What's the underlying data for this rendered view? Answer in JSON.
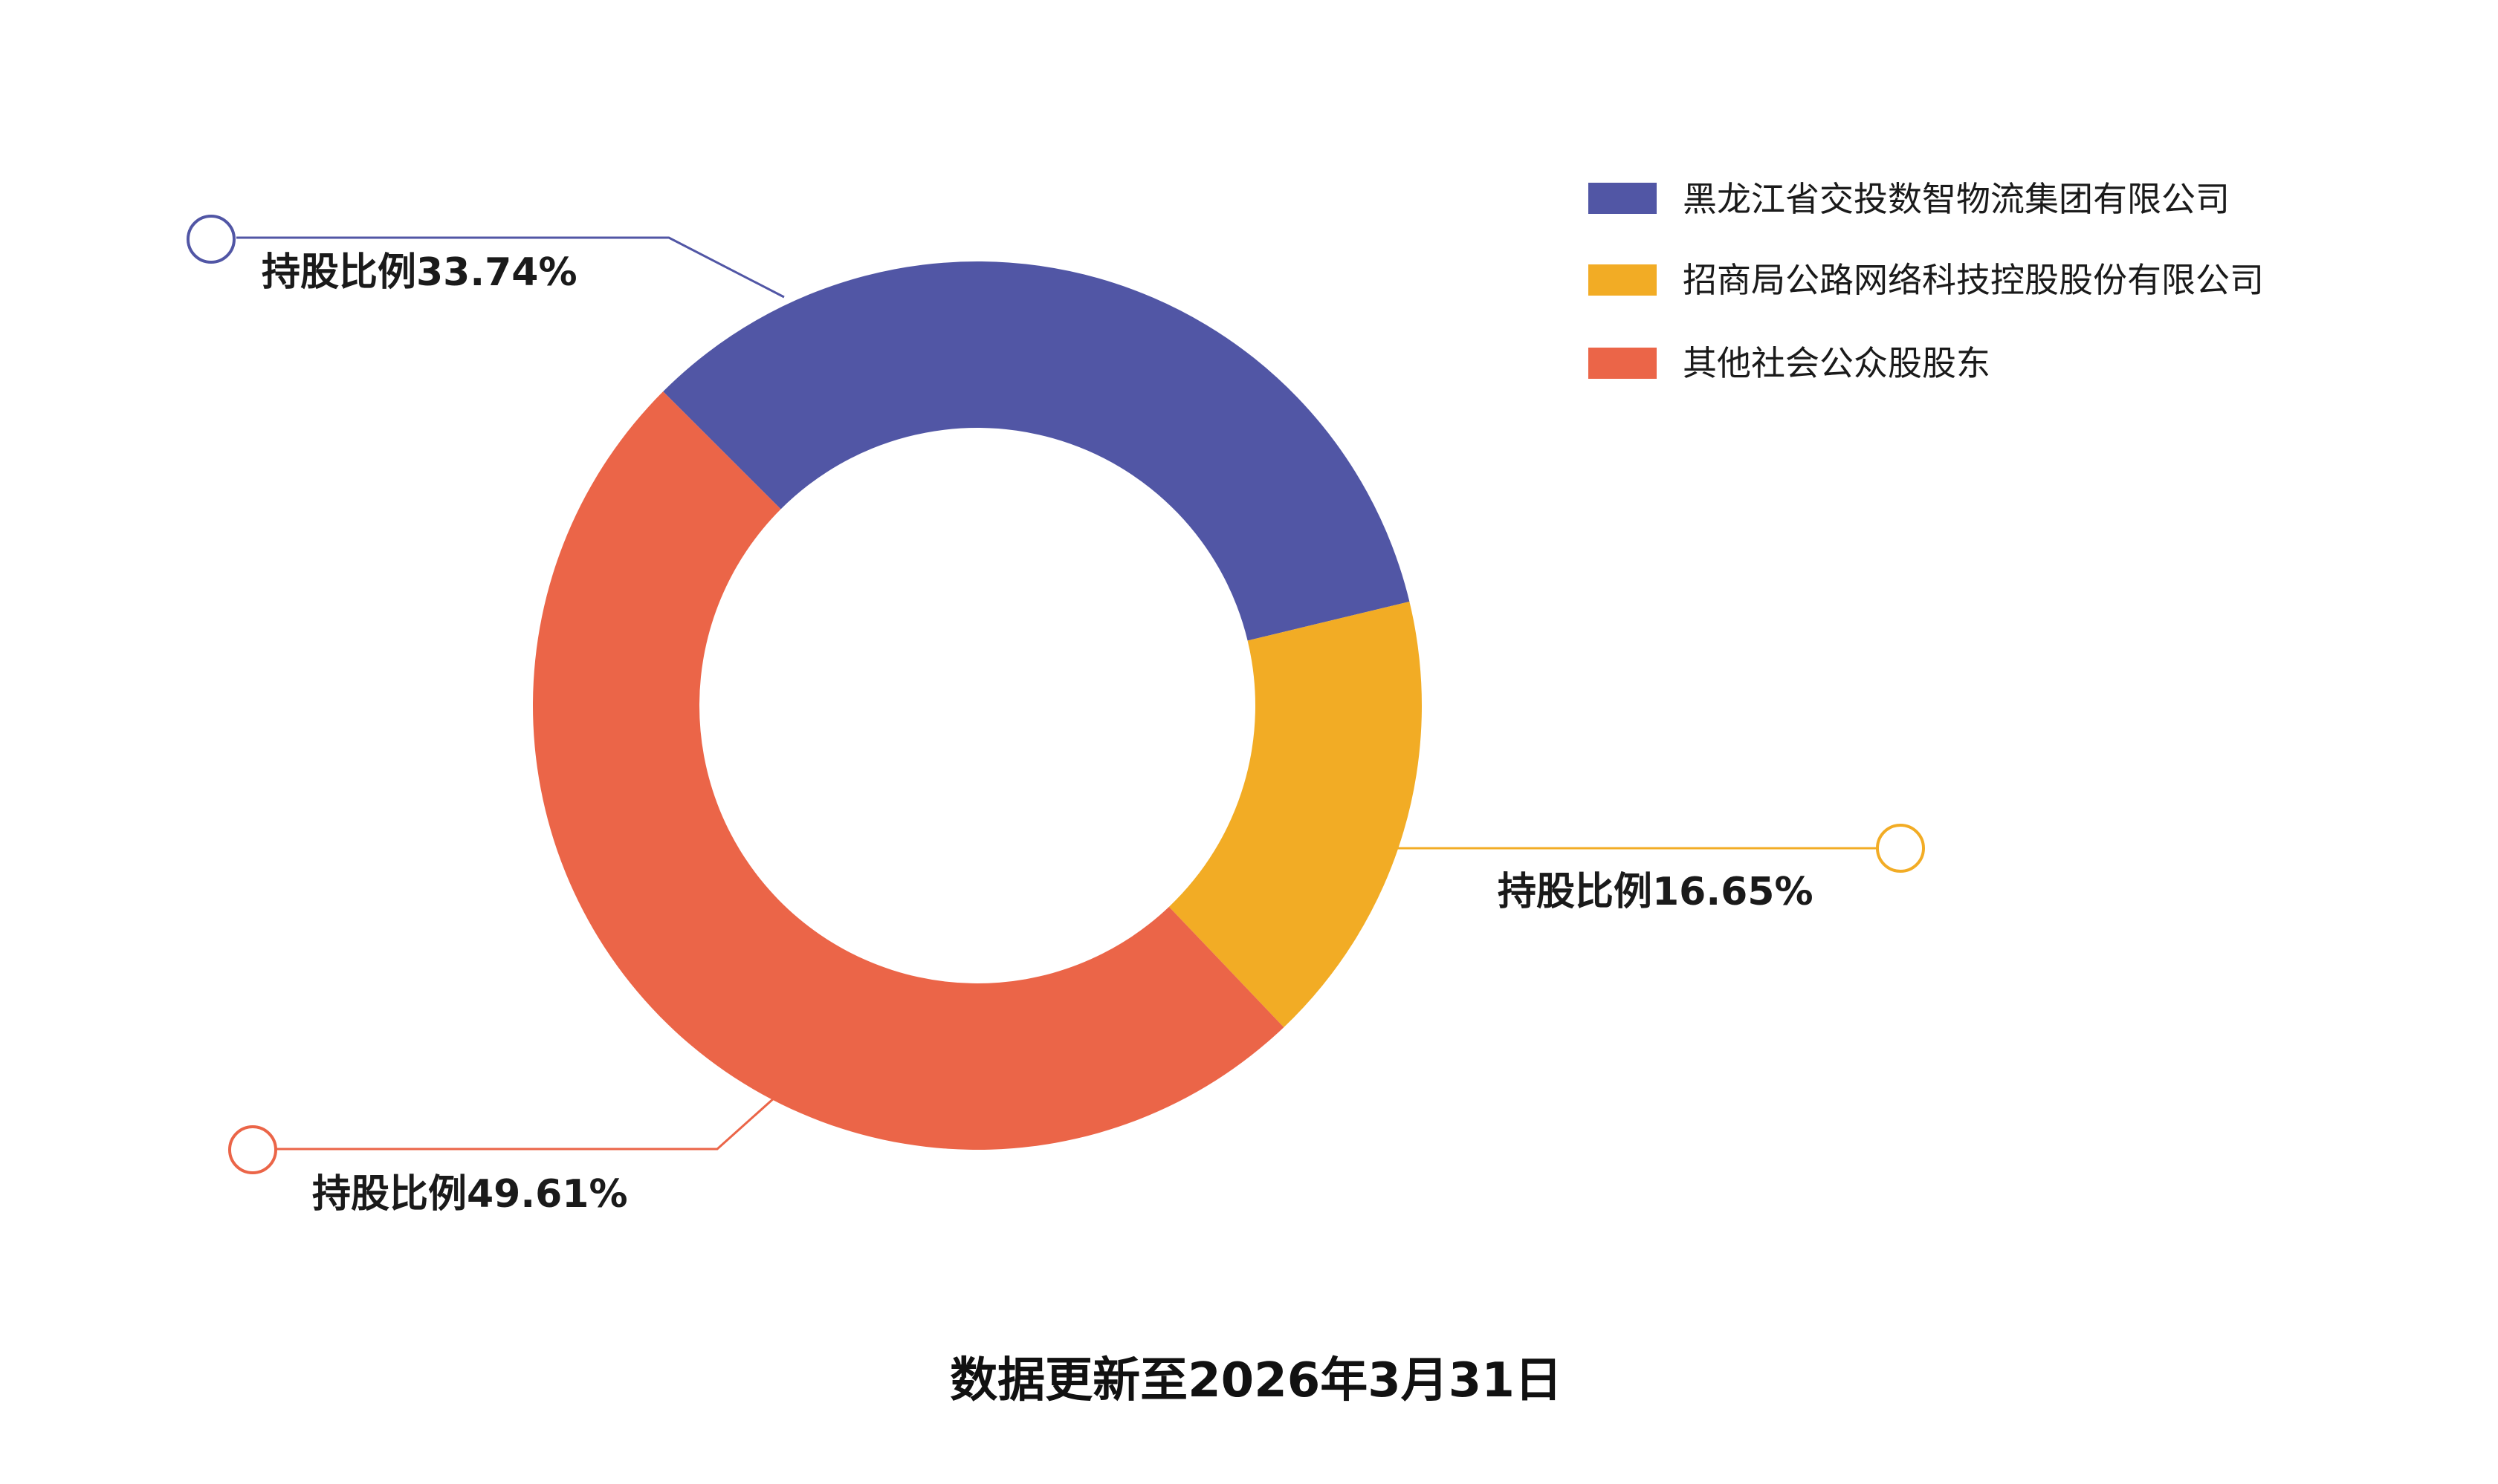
{
  "chart_data": {
    "type": "pie",
    "series": [
      {
        "name": "黑龙江省交投数智物流集团有限公司",
        "value": 33.74,
        "label": "持股比例33.74%",
        "color": "#5156a5"
      },
      {
        "name": "招商局公路网络科技控股股份有限公司",
        "value": 16.65,
        "label": "持股比例16.65%",
        "color": "#f2ac25"
      },
      {
        "name": "其他社会公众股股东",
        "value": 49.61,
        "label": "持股比例49.61%",
        "color": "#eb6548"
      }
    ],
    "legend_position": "top-right",
    "donut": true
  },
  "footer": "数据更新至2026年3月31日"
}
